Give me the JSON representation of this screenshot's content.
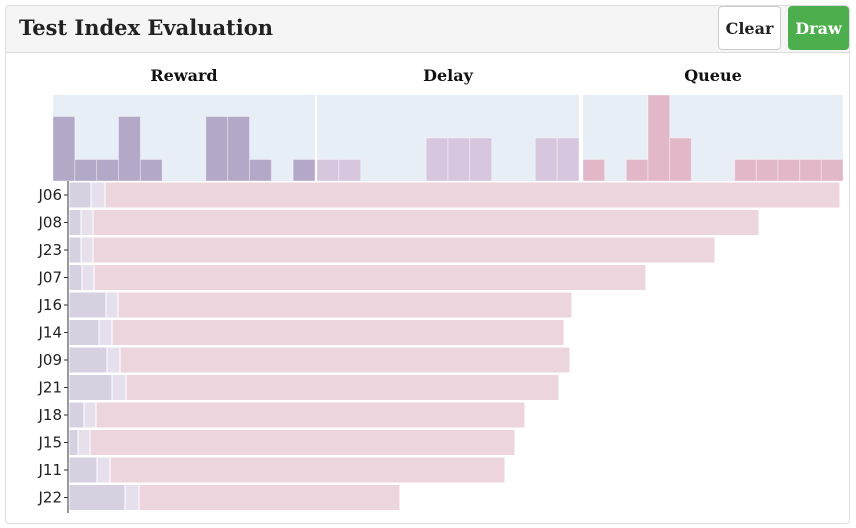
{
  "panel": {
    "title": "Test Index Evaluation",
    "clear_label": "Clear",
    "draw_label": "Draw"
  },
  "colors": {
    "draw_button": "#4cae4c",
    "histogram_background": "#e8eef5",
    "reward": "#b4a8c8",
    "delay": "#d7c7de",
    "queue": "#e2b8c8",
    "bar_reward": "#d6d0e0",
    "bar_delay": "#e6dfec",
    "bar_queue": "#edd5de"
  },
  "chart_data": {
    "type": "bar",
    "orientation": "horizontal-stacked",
    "histograms": [
      {
        "title": "Reward",
        "values": [
          3,
          1,
          1,
          3,
          1,
          0,
          0,
          3,
          3,
          1,
          0,
          1
        ]
      },
      {
        "title": "Delay",
        "values": [
          1,
          1,
          0,
          0,
          0,
          2,
          2,
          2,
          0,
          0,
          2,
          2
        ]
      },
      {
        "title": "Queue",
        "values": [
          1,
          0,
          1,
          4,
          2,
          0,
          0,
          1,
          1,
          1,
          1,
          1
        ]
      }
    ],
    "categories": [
      "J06",
      "J08",
      "J23",
      "J07",
      "J16",
      "J14",
      "J09",
      "J21",
      "J18",
      "J15",
      "J11",
      "J22"
    ],
    "series": [
      {
        "values": [
          22,
          12,
          12,
          13,
          37,
          30,
          38,
          43,
          15,
          9,
          28,
          56
        ]
      },
      {
        "values": [
          14,
          12,
          12,
          12,
          12,
          13,
          13,
          14,
          12,
          12,
          13,
          14
        ]
      },
      {
        "values": [
          735,
          666,
          622,
          552,
          454,
          452,
          450,
          433,
          429,
          425,
          395,
          261
        ]
      }
    ],
    "xlim": [
      0,
      775
    ]
  }
}
